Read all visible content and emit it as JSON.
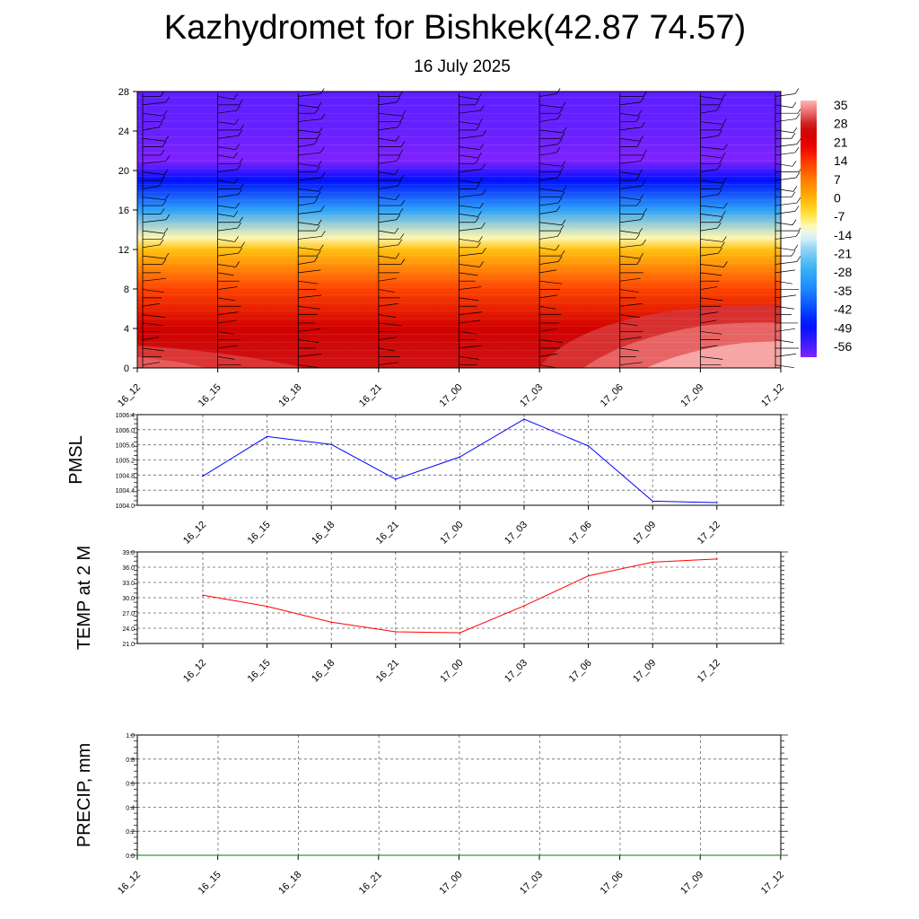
{
  "title": "Kazhydromet for Bishkek(42.87 74.57)",
  "subtitle": "16 July 2025",
  "time_labels": [
    "16_12",
    "16_15",
    "16_18",
    "16_21",
    "17_00",
    "17_03",
    "17_06",
    "17_09",
    "17_12"
  ],
  "chart_data": [
    {
      "type": "heatmap",
      "title": "",
      "xlabel": "",
      "ylabel": "",
      "ylim": [
        0,
        28
      ],
      "y_ticks": [
        "0",
        "4",
        "8",
        "12",
        "16",
        "20",
        "24",
        "28"
      ],
      "x_categories": [
        "16_12",
        "16_15",
        "16_18",
        "16_21",
        "17_00",
        "17_03",
        "17_06",
        "17_09",
        "17_12"
      ],
      "colorbar_labels": [
        "35",
        "28",
        "21",
        "14",
        "7",
        "0",
        "-7",
        "-14",
        "-21",
        "-28",
        "-35",
        "-42",
        "-49",
        "-56"
      ],
      "colorbar_range": [
        -63,
        42
      ],
      "temperature_profile": [
        {
          "height": 0,
          "value": 31
        },
        {
          "height": 4,
          "value": 28
        },
        {
          "height": 8,
          "value": 16
        },
        {
          "height": 12,
          "value": 0
        },
        {
          "height": 13.2,
          "value": -9
        },
        {
          "height": 16,
          "value": -30
        },
        {
          "height": 19,
          "value": -50
        },
        {
          "height": 21,
          "value": -63
        },
        {
          "height": 24,
          "value": -61
        },
        {
          "height": 28,
          "value": -60
        }
      ],
      "wind_barbs": "on",
      "colors": {
        "hot": "#cc0000",
        "cold": "#7a33ff"
      }
    },
    {
      "type": "line",
      "ylabel": "PMSL",
      "ylim": [
        1004.0,
        1006.4
      ],
      "y_ticks": [
        "1004.0",
        "1004.4",
        "1004.8",
        "1005.2",
        "1005.6",
        "1006.0",
        "1006.4"
      ],
      "categories": [
        "16_12",
        "16_15",
        "16_18",
        "16_21",
        "17_00",
        "17_03",
        "17_06",
        "17_09",
        "17_12"
      ],
      "values": [
        1004.77,
        1005.82,
        1005.61,
        1004.69,
        1005.28,
        1006.28,
        1005.57,
        1004.11,
        1004.07
      ],
      "grid": "on",
      "color": "#0000ff"
    },
    {
      "type": "line",
      "ylabel": "TEMP at 2 M",
      "ylim": [
        21.0,
        39.0
      ],
      "y_ticks": [
        "21.0",
        "24.0",
        "27.0",
        "30.0",
        "33.0",
        "36.0",
        "39.0"
      ],
      "categories": [
        "16_12",
        "16_15",
        "16_18",
        "16_21",
        "17_00",
        "17_03",
        "17_06",
        "17_09",
        "17_12"
      ],
      "values": [
        30.5,
        28.3,
        25.2,
        23.3,
        23.1,
        28.4,
        34.3,
        37.0,
        37.6
      ],
      "grid": "on",
      "color": "#ff0000"
    },
    {
      "type": "line",
      "ylabel": "PRECIP, mm",
      "ylim": [
        0.0,
        1.0
      ],
      "y_ticks": [
        "0.0",
        "0.2",
        "0.4",
        "0.6",
        "0.8",
        "1.0"
      ],
      "categories": [
        "16_12",
        "16_15",
        "16_18",
        "16_21",
        "17_00",
        "17_03",
        "17_06",
        "17_09",
        "17_12"
      ],
      "values": [
        0,
        0,
        0,
        0,
        0,
        0,
        0,
        0,
        0
      ],
      "grid": "on",
      "color": "#008000"
    }
  ]
}
